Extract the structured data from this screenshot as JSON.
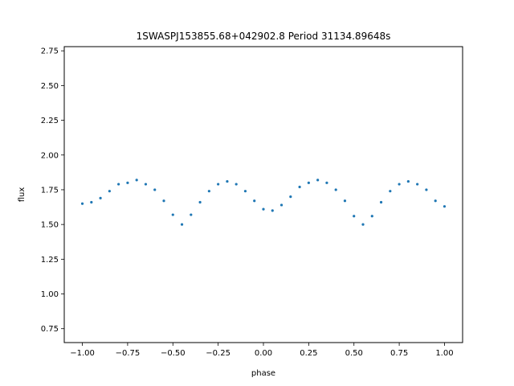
{
  "chart_data": {
    "type": "scatter",
    "title": "1SWASPJ153855.68+042902.8 Period 31134.89648s",
    "xlabel": "phase",
    "ylabel": "flux",
    "xlim": [
      -1.1,
      1.1
    ],
    "ylim": [
      0.65,
      2.78
    ],
    "xticks": [
      -1.0,
      -0.75,
      -0.5,
      -0.25,
      0.0,
      0.25,
      0.5,
      0.75,
      1.0
    ],
    "xtick_labels": [
      "−1.00",
      "−0.75",
      "−0.50",
      "−0.25",
      "0.00",
      "0.25",
      "0.50",
      "0.75",
      "1.00"
    ],
    "yticks": [
      0.75,
      1.0,
      1.25,
      1.5,
      1.75,
      2.0,
      2.25,
      2.5,
      2.75
    ],
    "ytick_labels": [
      "0.75",
      "1.00",
      "1.25",
      "1.50",
      "1.75",
      "2.00",
      "2.25",
      "2.50",
      "2.75"
    ],
    "grid": false,
    "point_color": "#1f77b4",
    "series": [
      {
        "x": [
          -1.0,
          -0.95,
          -0.9,
          -0.85,
          -0.8,
          -0.75,
          -0.7,
          -0.65,
          -0.6,
          -0.55,
          -0.5,
          -0.45,
          -0.4,
          -0.35,
          -0.3,
          -0.25,
          -0.2,
          -0.15,
          -0.1,
          -0.05,
          0.0,
          0.05,
          0.1,
          0.15,
          0.2,
          0.25,
          0.3,
          0.35,
          0.4,
          0.45,
          0.5,
          0.55,
          0.6,
          0.65,
          0.7,
          0.75,
          0.8,
          0.85,
          0.9,
          0.95,
          1.0
        ],
        "y": [
          1.65,
          1.66,
          1.69,
          1.74,
          1.79,
          1.8,
          1.82,
          1.79,
          1.75,
          1.67,
          1.57,
          1.5,
          1.57,
          1.66,
          1.74,
          1.79,
          1.81,
          1.79,
          1.74,
          1.67,
          1.61,
          1.6,
          1.64,
          1.7,
          1.77,
          1.8,
          1.82,
          1.8,
          1.75,
          1.67,
          1.56,
          1.5,
          1.56,
          1.66,
          1.74,
          1.79,
          1.81,
          1.79,
          1.75,
          1.67,
          1.63
        ]
      }
    ]
  }
}
